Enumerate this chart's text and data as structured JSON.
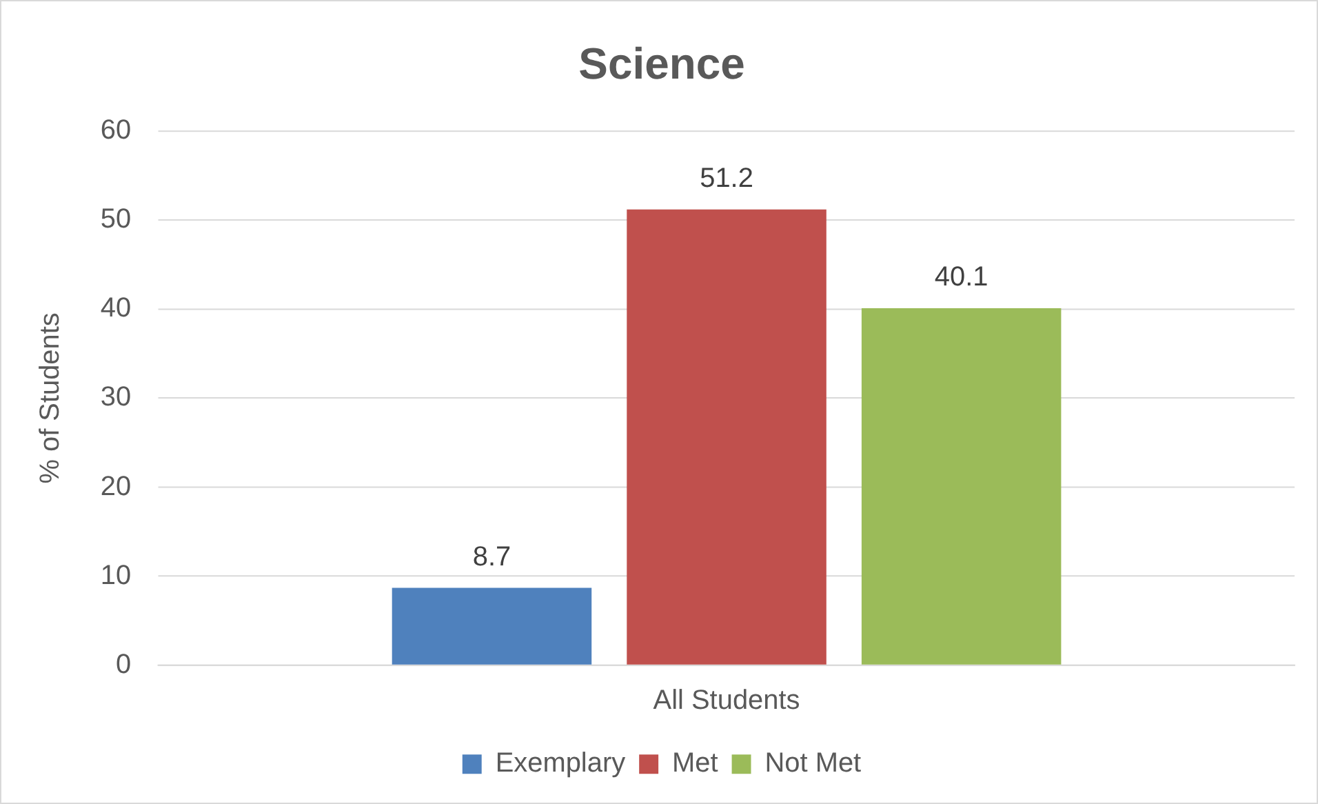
{
  "chart_data": {
    "type": "bar",
    "title": "Science",
    "ylabel": "% of Students",
    "categories": [
      "All Students"
    ],
    "series": [
      {
        "name": "Exemplary",
        "color": "#4f81bd",
        "values": [
          8.7
        ]
      },
      {
        "name": "Met",
        "color": "#c0504d",
        "values": [
          51.2
        ]
      },
      {
        "name": "Not Met",
        "color": "#9bbb59",
        "values": [
          40.1
        ]
      }
    ],
    "ylim": [
      0,
      60
    ],
    "yticks": [
      0,
      10,
      20,
      30,
      40,
      50,
      60
    ],
    "grid": "y",
    "legend": "bottom",
    "data_labels": true
  }
}
